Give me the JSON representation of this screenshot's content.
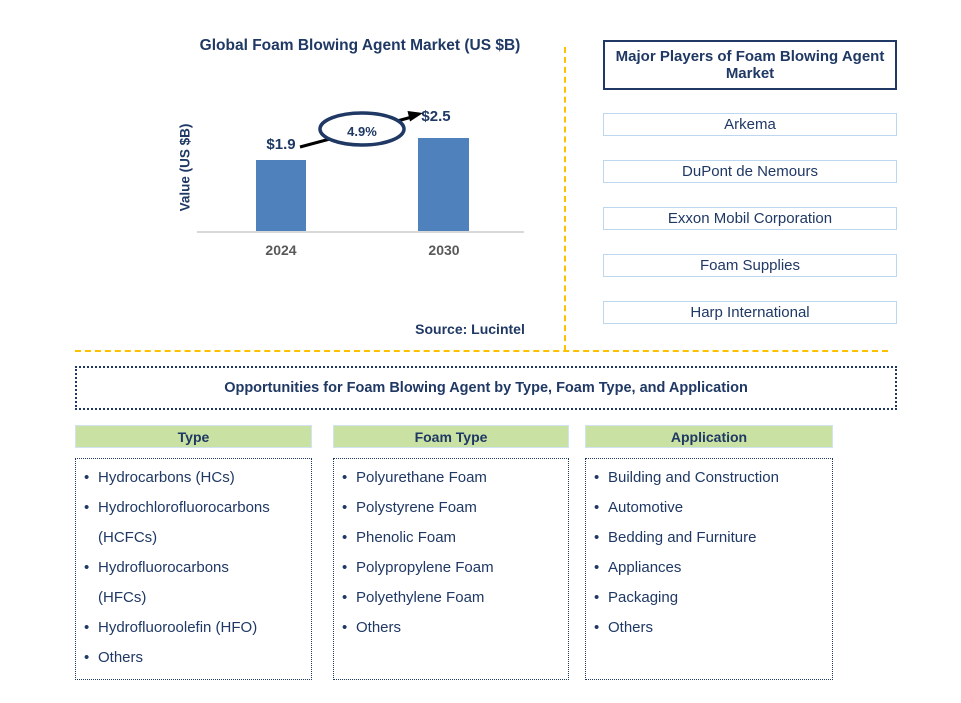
{
  "chart_data": {
    "type": "bar",
    "title": "Global Foam Blowing Agent Market (US $B)",
    "ylabel": "Value (US $B)",
    "xlabel": "",
    "categories": [
      "2024",
      "2030"
    ],
    "values": [
      1.9,
      2.5
    ],
    "bar_labels": [
      "$1.9",
      "$2.5"
    ],
    "growth_annotation": "4.9%",
    "source": "Source: Lucintel",
    "bar_color": "#4F81BD",
    "grid": "off",
    "legend": "none"
  },
  "major_players": {
    "title": "Major Players of Foam Blowing Agent Market",
    "players": [
      "Arkema",
      "DuPont de Nemours",
      "Exxon Mobil Corporation",
      "Foam Supplies",
      "Harp International"
    ]
  },
  "opportunities": {
    "title": "Opportunities for Foam Blowing Agent by Type, Foam Type, and Application"
  },
  "segments": [
    {
      "header": "Type",
      "items": [
        "Hydrocarbons (HCs)",
        "Hydrochlorofluorocarbons (HCFCs)",
        "Hydrofluorocarbons (HFCs)",
        "Hydrofluoroolefin (HFO)",
        "Others"
      ]
    },
    {
      "header": "Foam Type",
      "items": [
        "Polyurethane Foam",
        "Polystyrene Foam",
        "Phenolic Foam",
        "Polypropylene Foam",
        "Polyethylene Foam",
        "Others"
      ]
    },
    {
      "header": "Application",
      "items": [
        "Building and Construction",
        "Automotive",
        "Bedding and Furniture",
        "Appliances",
        "Packaging",
        "Others"
      ]
    }
  ],
  "colors": {
    "navy_text": "#1F3864",
    "bar_blue": "#4F81BD",
    "header_green": "#C9E2A4",
    "divider_orange": "#FFC000",
    "player_box_border": "#BDD7EE",
    "axis_gray": "#595959",
    "baseline_gray": "#D9D9D9"
  }
}
